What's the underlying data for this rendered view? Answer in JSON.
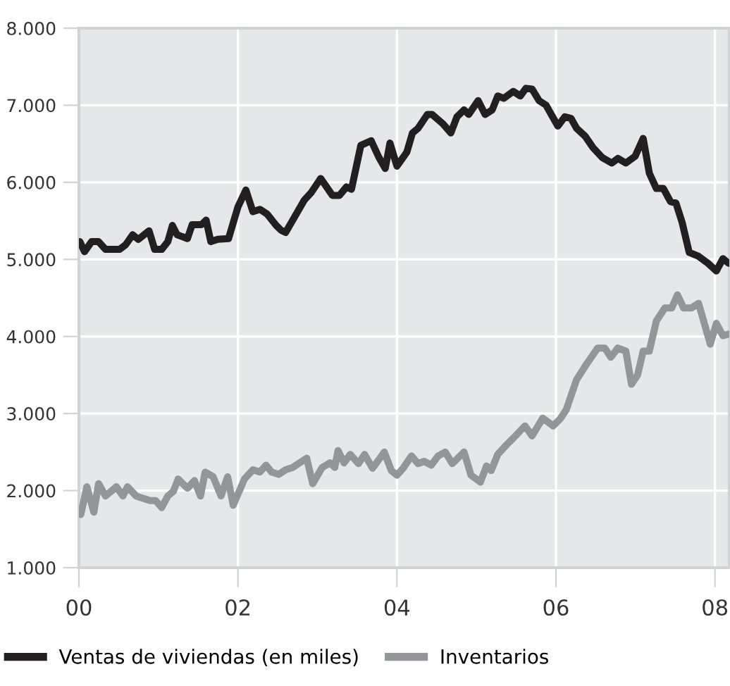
{
  "chart_data": {
    "type": "line",
    "series": [
      {
        "name": "Ventas de viviendas (en miles)",
        "color": "#231f20",
        "x": [
          2000.012,
          2000.071,
          2000.159,
          2000.247,
          2000.335,
          2000.512,
          2000.588,
          2000.676,
          2000.747,
          2000.882,
          2000.953,
          2001.041,
          2001.118,
          2001.176,
          2001.235,
          2001.365,
          2001.424,
          2001.541,
          2001.6,
          2001.659,
          2001.747,
          2001.882,
          2002.0,
          2002.1,
          2002.188,
          2002.276,
          2002.365,
          2002.482,
          2002.541,
          2002.6,
          2002.718,
          2002.835,
          2002.924,
          2003.041,
          2003.188,
          2003.276,
          2003.365,
          2003.428,
          2003.546,
          2003.676,
          2003.77,
          2003.853,
          2003.912,
          2004.0,
          2004.124,
          2004.195,
          2004.265,
          2004.383,
          2004.442,
          2004.578,
          2004.678,
          2004.755,
          2004.844,
          2004.903,
          2005.021,
          2005.109,
          2005.198,
          2005.268,
          2005.345,
          2005.463,
          2005.552,
          2005.622,
          2005.699,
          2005.788,
          2005.876,
          2006.024,
          2006.112,
          2006.189,
          2006.26,
          2006.366,
          2006.466,
          2006.584,
          2006.702,
          2006.779,
          2006.879,
          2006.997,
          2007.097,
          2007.174,
          2007.263,
          2007.351,
          2007.44,
          2007.51,
          2007.587,
          2007.676,
          2007.794,
          2007.912,
          2008.018,
          2008.1,
          2008.171
        ],
        "values": [
          5230,
          5100,
          5230,
          5230,
          5130,
          5130,
          5190,
          5320,
          5260,
          5370,
          5130,
          5130,
          5230,
          5440,
          5320,
          5270,
          5450,
          5450,
          5510,
          5230,
          5260,
          5270,
          5680,
          5900,
          5620,
          5650,
          5590,
          5440,
          5380,
          5350,
          5560,
          5770,
          5870,
          6050,
          5830,
          5830,
          5940,
          5910,
          6480,
          6540,
          6330,
          6180,
          6510,
          6210,
          6390,
          6640,
          6700,
          6880,
          6880,
          6760,
          6640,
          6850,
          6940,
          6880,
          7060,
          6880,
          6940,
          7120,
          7090,
          7180,
          7120,
          7220,
          7210,
          7060,
          7000,
          6730,
          6850,
          6830,
          6700,
          6600,
          6450,
          6320,
          6250,
          6310,
          6250,
          6340,
          6570,
          6120,
          5920,
          5920,
          5750,
          5730,
          5480,
          5090,
          5040,
          4950,
          4850,
          5010,
          4950
        ]
      },
      {
        "name": "Inventarios",
        "color": "#939598",
        "x": [
          2000.024,
          2000.1,
          2000.188,
          2000.247,
          2000.335,
          2000.471,
          2000.553,
          2000.612,
          2000.718,
          2000.894,
          2000.965,
          2001.041,
          2001.118,
          2001.188,
          2001.247,
          2001.365,
          2001.453,
          2001.529,
          2001.588,
          2001.688,
          2001.788,
          2001.871,
          2001.941,
          2002.082,
          2002.188,
          2002.276,
          2002.353,
          2002.424,
          2002.512,
          2002.6,
          2002.688,
          2002.776,
          2002.865,
          2002.941,
          2003.059,
          2003.159,
          2003.218,
          2003.259,
          2003.335,
          2003.412,
          2003.516,
          2003.593,
          2003.693,
          2003.841,
          2003.929,
          2004.0,
          2004.077,
          2004.183,
          2004.265,
          2004.342,
          2004.431,
          2004.519,
          2004.608,
          2004.696,
          2004.844,
          2004.932,
          2005.05,
          2005.127,
          2005.186,
          2005.268,
          2005.375,
          2005.463,
          2005.611,
          2005.699,
          2005.835,
          2005.965,
          2006.053,
          2006.13,
          2006.26,
          2006.378,
          2006.525,
          2006.614,
          2006.69,
          2006.779,
          2006.879,
          2006.95,
          2007.027,
          2007.097,
          2007.174,
          2007.263,
          2007.369,
          2007.457,
          2007.528,
          2007.605,
          2007.705,
          2007.794,
          2007.941,
          2008.018,
          2008.1,
          2008.171
        ],
        "values": [
          1690,
          2050,
          1720,
          2090,
          1930,
          2050,
          1930,
          2050,
          1930,
          1870,
          1870,
          1780,
          1930,
          1990,
          2150,
          2030,
          2130,
          1930,
          2240,
          2180,
          1930,
          2180,
          1810,
          2150,
          2270,
          2240,
          2330,
          2240,
          2210,
          2270,
          2300,
          2360,
          2420,
          2090,
          2300,
          2360,
          2300,
          2520,
          2360,
          2470,
          2350,
          2470,
          2290,
          2500,
          2260,
          2200,
          2290,
          2450,
          2350,
          2380,
          2330,
          2450,
          2500,
          2350,
          2500,
          2200,
          2110,
          2320,
          2260,
          2470,
          2590,
          2680,
          2840,
          2710,
          2940,
          2840,
          2930,
          3050,
          3440,
          3630,
          3850,
          3850,
          3730,
          3850,
          3810,
          3380,
          3500,
          3810,
          3810,
          4200,
          4370,
          4370,
          4540,
          4370,
          4370,
          4430,
          3900,
          4170,
          4010,
          4030
        ]
      }
    ],
    "xlim": [
      2000,
      2008.18
    ],
    "xticks": [
      {
        "value": 2000,
        "label": "00"
      },
      {
        "value": 2002,
        "label": "02"
      },
      {
        "value": 2004,
        "label": "04"
      },
      {
        "value": 2006,
        "label": "06"
      },
      {
        "value": 2008,
        "label": "08"
      }
    ],
    "ylim": [
      1000,
      8000
    ],
    "yticks": [
      {
        "value": 1000,
        "label": "1.000"
      },
      {
        "value": 2000,
        "label": "2.000"
      },
      {
        "value": 3000,
        "label": "3.000"
      },
      {
        "value": 4000,
        "label": "4.000"
      },
      {
        "value": 5000,
        "label": "5.000"
      },
      {
        "value": 6000,
        "label": "6.000"
      },
      {
        "value": 7000,
        "label": "7.000"
      },
      {
        "value": 8000,
        "label": "8.000"
      }
    ],
    "grid": true,
    "legend": "bottom",
    "marker": "none",
    "line_style": "solid"
  }
}
